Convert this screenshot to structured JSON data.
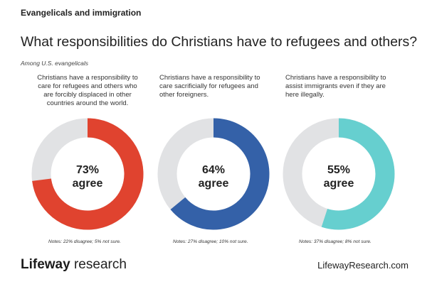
{
  "header": {
    "kicker": "Evangelicals and immigration",
    "title": "What responsibilities do Christians have to refugees and others?",
    "subtitle": "Among U.S. evangelicals"
  },
  "colors": {
    "remainder": "#e1e2e4",
    "text": "#222222"
  },
  "chart_data": [
    {
      "type": "pie",
      "statement": "Christians have a responsibility to care for refugees and others who are forcibly displaced in other countries around the world.",
      "value": 73,
      "value_label": "73%",
      "center_label": "agree",
      "color": "#e0432f",
      "notes": "Notes: 22% disagree; 5% not sure."
    },
    {
      "type": "pie",
      "statement": "Christians have a responsibility to care sacrificially for refugees and other foreigners.",
      "value": 64,
      "value_label": "64%",
      "center_label": "agree",
      "color": "#3461a8",
      "notes": "Notes: 27% disagree; 10% not sure."
    },
    {
      "type": "pie",
      "statement": "Christians have a responsibility to assist immigrants even if they are here illegally.",
      "value": 55,
      "value_label": "55%",
      "center_label": "agree",
      "color": "#66cfcf",
      "notes": "Notes: 37% disagree; 8% not sure."
    }
  ],
  "footer": {
    "brand_part1": "Lifeway",
    "brand_part2": " research",
    "website": "LifewayResearch.com"
  }
}
